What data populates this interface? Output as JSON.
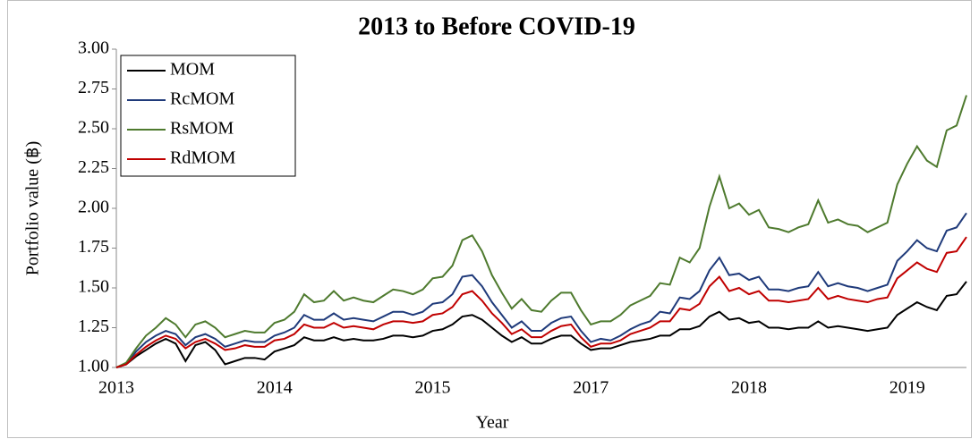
{
  "chart_data": {
    "type": "line",
    "title": "2013 to Before COVID-19",
    "x_label": "Year",
    "y_label": "Portfolio value (฿)",
    "categories": [
      "2013",
      null,
      null,
      null,
      null,
      null,
      null,
      null,
      null,
      null,
      null,
      null,
      null,
      null,
      null,
      null,
      "2014",
      null,
      null,
      null,
      null,
      null,
      null,
      null,
      null,
      null,
      null,
      null,
      null,
      null,
      null,
      null,
      "2015",
      null,
      null,
      null,
      null,
      null,
      null,
      null,
      null,
      null,
      null,
      null,
      null,
      null,
      null,
      null,
      "2017",
      null,
      null,
      null,
      null,
      null,
      null,
      null,
      null,
      null,
      null,
      null,
      null,
      null,
      null,
      null,
      "2018",
      null,
      null,
      null,
      null,
      null,
      null,
      null,
      null,
      null,
      null,
      null,
      null,
      null,
      null,
      null,
      "2019",
      null,
      null,
      null,
      null,
      null,
      null
    ],
    "ylim": [
      1.0,
      3.0
    ],
    "yticks": [
      {
        "value": 1.0,
        "label": "1.00"
      },
      {
        "value": 1.25,
        "label": "1.25"
      },
      {
        "value": 1.5,
        "label": "1.50"
      },
      {
        "value": 1.75,
        "label": "1.75"
      },
      {
        "value": 2.0,
        "label": "2.00"
      },
      {
        "value": 2.25,
        "label": "2.25"
      },
      {
        "value": 2.5,
        "label": "2.50"
      },
      {
        "value": 2.75,
        "label": "2.75"
      },
      {
        "value": 3.0,
        "label": "3.00"
      }
    ],
    "grid": false,
    "legend": "upper left",
    "series": [
      {
        "name": "MOM",
        "color": "#000000",
        "values": [
          1.0,
          1.02,
          1.07,
          1.11,
          1.15,
          1.18,
          1.15,
          1.04,
          1.14,
          1.16,
          1.11,
          1.02,
          1.04,
          1.06,
          1.06,
          1.05,
          1.1,
          1.12,
          1.14,
          1.19,
          1.17,
          1.17,
          1.19,
          1.17,
          1.18,
          1.17,
          1.17,
          1.18,
          1.2,
          1.2,
          1.19,
          1.2,
          1.23,
          1.24,
          1.27,
          1.32,
          1.33,
          1.3,
          1.25,
          1.2,
          1.16,
          1.19,
          1.15,
          1.15,
          1.18,
          1.2,
          1.2,
          1.15,
          1.11,
          1.12,
          1.12,
          1.14,
          1.16,
          1.17,
          1.18,
          1.2,
          1.2,
          1.24,
          1.24,
          1.26,
          1.32,
          1.35,
          1.3,
          1.31,
          1.28,
          1.29,
          1.25,
          1.25,
          1.24,
          1.25,
          1.25,
          1.29,
          1.25,
          1.26,
          1.25,
          1.24,
          1.23,
          1.24,
          1.25,
          1.33,
          1.37,
          1.41,
          1.38,
          1.36,
          1.45,
          1.46,
          1.54
        ]
      },
      {
        "name": "RcMOM",
        "color": "#1f3a7a",
        "values": [
          1.0,
          1.02,
          1.1,
          1.16,
          1.2,
          1.23,
          1.21,
          1.14,
          1.19,
          1.21,
          1.18,
          1.13,
          1.15,
          1.17,
          1.16,
          1.16,
          1.2,
          1.22,
          1.25,
          1.33,
          1.3,
          1.3,
          1.34,
          1.3,
          1.31,
          1.3,
          1.29,
          1.32,
          1.35,
          1.35,
          1.33,
          1.35,
          1.4,
          1.41,
          1.46,
          1.57,
          1.58,
          1.51,
          1.41,
          1.33,
          1.25,
          1.29,
          1.23,
          1.23,
          1.28,
          1.31,
          1.32,
          1.23,
          1.16,
          1.18,
          1.17,
          1.2,
          1.24,
          1.27,
          1.29,
          1.35,
          1.34,
          1.44,
          1.43,
          1.48,
          1.61,
          1.69,
          1.58,
          1.59,
          1.55,
          1.57,
          1.49,
          1.49,
          1.48,
          1.5,
          1.51,
          1.6,
          1.51,
          1.53,
          1.51,
          1.5,
          1.48,
          1.5,
          1.52,
          1.67,
          1.73,
          1.8,
          1.75,
          1.73,
          1.86,
          1.88,
          1.97
        ]
      },
      {
        "name": "RsMOM",
        "color": "#4e7a2e",
        "values": [
          1.0,
          1.03,
          1.12,
          1.2,
          1.25,
          1.31,
          1.27,
          1.19,
          1.27,
          1.29,
          1.25,
          1.19,
          1.21,
          1.23,
          1.22,
          1.22,
          1.28,
          1.3,
          1.35,
          1.46,
          1.41,
          1.42,
          1.48,
          1.42,
          1.44,
          1.42,
          1.41,
          1.45,
          1.49,
          1.48,
          1.46,
          1.49,
          1.56,
          1.57,
          1.64,
          1.8,
          1.83,
          1.73,
          1.58,
          1.47,
          1.37,
          1.43,
          1.36,
          1.35,
          1.42,
          1.47,
          1.47,
          1.36,
          1.27,
          1.29,
          1.29,
          1.33,
          1.39,
          1.42,
          1.45,
          1.53,
          1.52,
          1.69,
          1.66,
          1.75,
          2.01,
          2.2,
          2.0,
          2.03,
          1.96,
          1.99,
          1.88,
          1.87,
          1.85,
          1.88,
          1.9,
          2.05,
          1.91,
          1.93,
          1.9,
          1.89,
          1.85,
          1.88,
          1.91,
          2.15,
          2.28,
          2.39,
          2.3,
          2.26,
          2.49,
          2.52,
          2.71
        ]
      },
      {
        "name": "RdMOM",
        "color": "#c00000",
        "values": [
          1.0,
          1.02,
          1.08,
          1.13,
          1.17,
          1.2,
          1.18,
          1.12,
          1.16,
          1.18,
          1.15,
          1.11,
          1.12,
          1.14,
          1.13,
          1.13,
          1.17,
          1.18,
          1.21,
          1.27,
          1.25,
          1.25,
          1.28,
          1.25,
          1.26,
          1.25,
          1.24,
          1.27,
          1.29,
          1.29,
          1.28,
          1.29,
          1.33,
          1.34,
          1.38,
          1.46,
          1.48,
          1.42,
          1.34,
          1.28,
          1.21,
          1.24,
          1.19,
          1.19,
          1.23,
          1.26,
          1.27,
          1.19,
          1.13,
          1.15,
          1.15,
          1.17,
          1.21,
          1.23,
          1.25,
          1.29,
          1.29,
          1.37,
          1.36,
          1.4,
          1.51,
          1.57,
          1.48,
          1.5,
          1.46,
          1.48,
          1.42,
          1.42,
          1.41,
          1.42,
          1.43,
          1.5,
          1.43,
          1.45,
          1.43,
          1.42,
          1.41,
          1.43,
          1.44,
          1.56,
          1.61,
          1.66,
          1.62,
          1.6,
          1.72,
          1.73,
          1.82
        ]
      }
    ]
  }
}
